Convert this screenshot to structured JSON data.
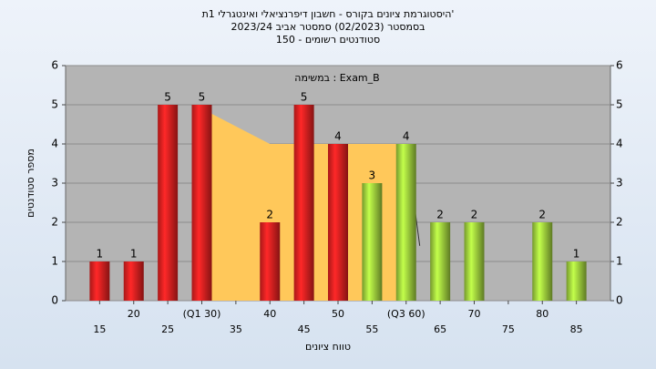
{
  "chart_data": {
    "type": "bar",
    "title": "'היסטוגרמת ציונים בקורס - חשבון דיפרנציאלי ואינטגרלי 1ת",
    "subtitle": [
      "בסמסטר  (02/2023)  סמסטר אביב 2023/24",
      "סטודנטים רשומים - 150"
    ],
    "annotation": "במשימה : Exam_B",
    "x_label": "טווח ציונים",
    "y_label": "מספר סטודנטים",
    "x": [
      15,
      20,
      25,
      30,
      35,
      40,
      45,
      50,
      55,
      60,
      65,
      70,
      75,
      80,
      85
    ],
    "values": [
      1,
      1,
      5,
      5,
      0,
      2,
      5,
      4,
      3,
      4,
      2,
      2,
      0,
      2,
      1
    ],
    "colors": [
      "#e02020",
      "#e02020",
      "#e02020",
      "#e02020",
      "#e02020",
      "#e02020",
      "#e02020",
      "#e02020",
      "#9ccc3c",
      "#9ccc3c",
      "#9ccc3c",
      "#9ccc3c",
      "#9ccc3c",
      "#9ccc3c",
      "#9ccc3c"
    ],
    "band": {
      "x": [
        30,
        40,
        60
      ],
      "values": [
        4.9,
        4,
        4
      ],
      "color": "#ffc85a"
    },
    "band_line": {
      "x": [
        60,
        62
      ],
      "values": [
        4,
        1.4
      ]
    },
    "xlim": [
      10,
      90
    ],
    "xticks": [
      15,
      20,
      25,
      {
        "value": 30,
        "label": "(Q1 30)"
      },
      35,
      40,
      45,
      50,
      55,
      {
        "value": 60,
        "label": "(Q3 60)"
      },
      65,
      70,
      75,
      80,
      85
    ],
    "ylim": [
      0,
      6
    ],
    "yticks": [
      0,
      1,
      2,
      3,
      4,
      5,
      6
    ],
    "grid": true
  }
}
